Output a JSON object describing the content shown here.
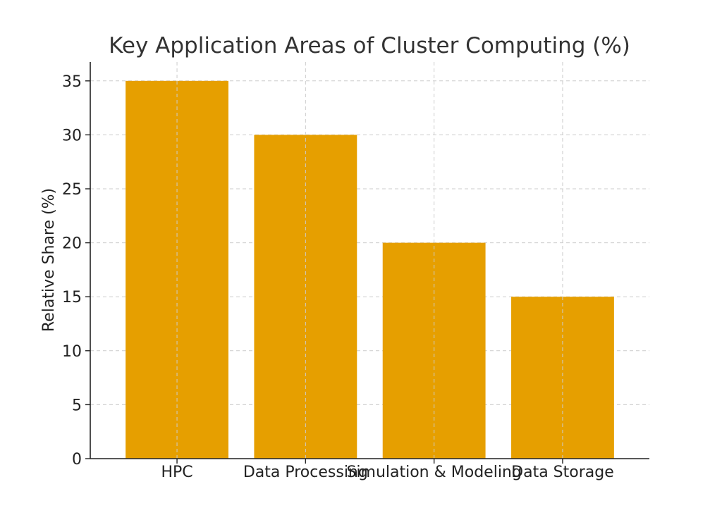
{
  "chart_data": {
    "type": "bar",
    "title": "Key Application Areas of Cluster Computing (%)",
    "xlabel": "",
    "ylabel": "Relative Share (%)",
    "categories": [
      "HPC",
      "Data Processing",
      "Simulation & Modeling",
      "Data Storage"
    ],
    "values": [
      35,
      30,
      20,
      15
    ],
    "ylim": [
      0,
      36.75
    ],
    "yticks": [
      0,
      5,
      10,
      15,
      20,
      25,
      30,
      35
    ],
    "grid": true,
    "bar_color": "#e69f00"
  }
}
